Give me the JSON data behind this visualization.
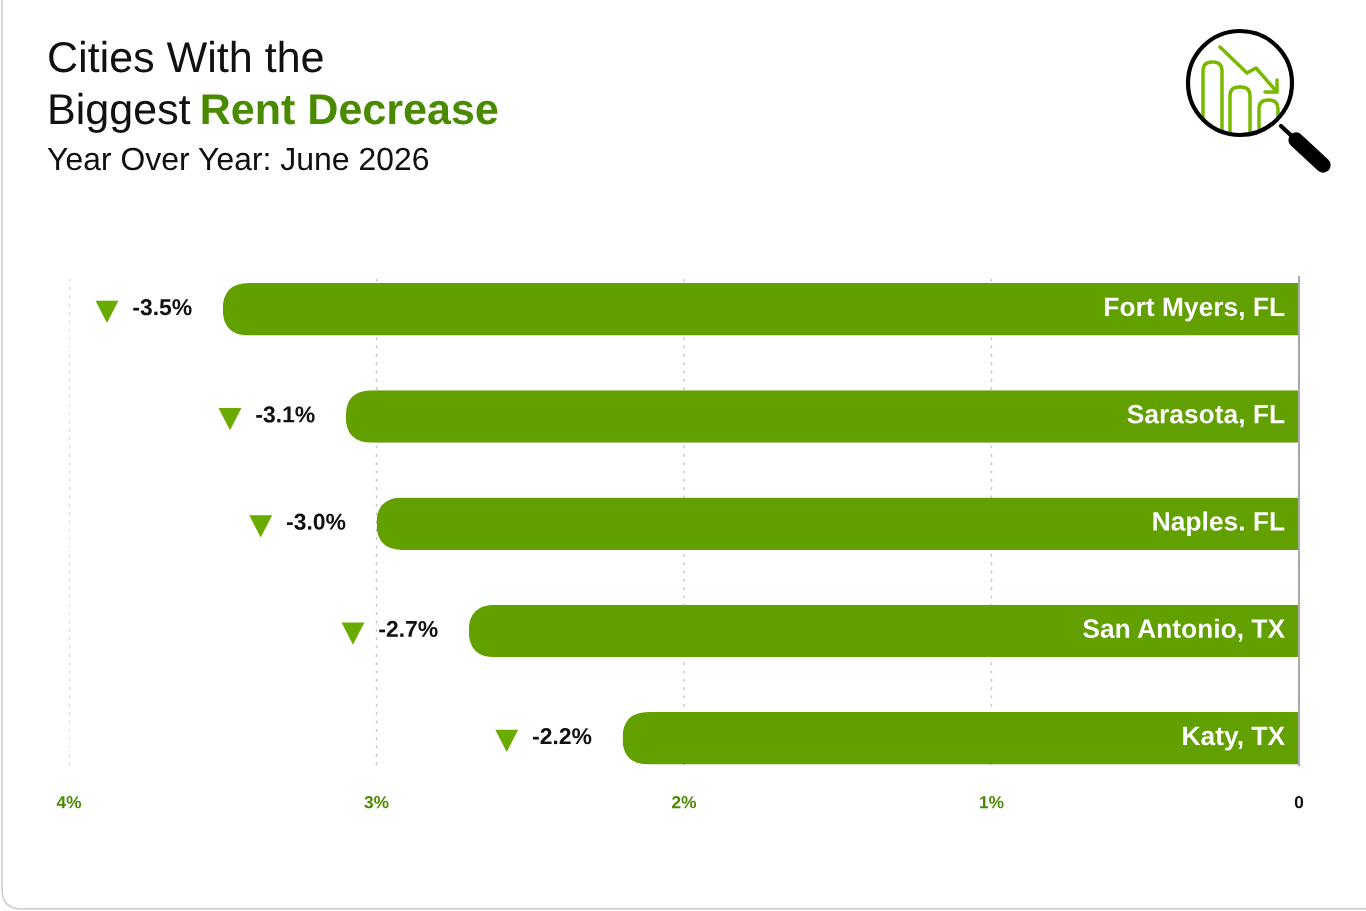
{
  "chart_data": {
    "type": "bar",
    "orientation": "horizontal",
    "title": "Cities With the\nBiggest Rent Decrease",
    "subtitle": "Year Over Year: June 2026",
    "categories": [
      "Fort Myers, FL",
      "Sarasota, FL",
      "Naples. FL",
      "San Antonio, TX",
      "Katy, TX"
    ],
    "values": [
      -3.5,
      -3.1,
      -3.0,
      -2.7,
      -2.2
    ],
    "color": "#62a000",
    "value_labels": [
      "-3.5%",
      "-3.1%",
      "-3.0%",
      "-2.7%",
      "-2.2%"
    ],
    "xlim": [
      -4,
      0
    ],
    "xticks": [
      {
        "value": -4,
        "label": "4%"
      },
      {
        "value": -3,
        "label": "3%"
      },
      {
        "value": -2,
        "label": "2%"
      },
      {
        "value": -1,
        "label": "1%"
      },
      0
    ],
    "grid": "x"
  }
}
